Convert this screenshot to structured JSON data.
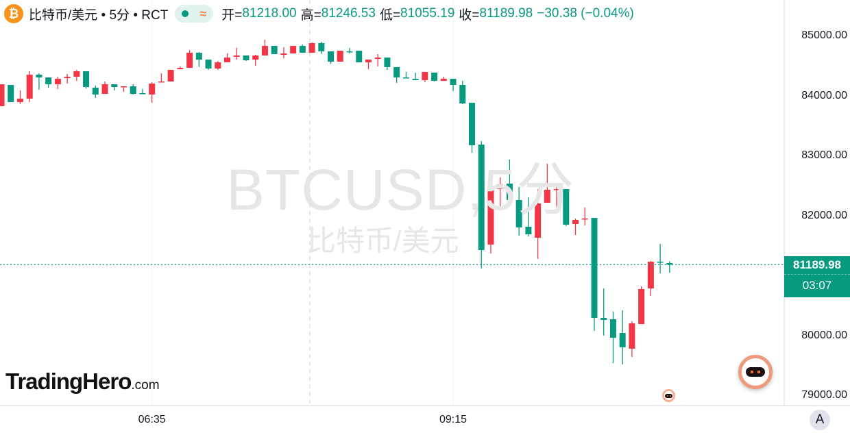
{
  "header": {
    "symbol_icon": "bitcoin-icon",
    "symbol_glyph": "₿",
    "title": "比特币/美元 • 5分 • RCT",
    "status_dot_color": "#089981",
    "approx_glyph": "≈",
    "open_label": "开=",
    "open": "81218.00",
    "high_label": "高=",
    "high": "81246.53",
    "low_label": "低=",
    "low": "81055.19",
    "close_label": "收=",
    "close": "81189.98",
    "change": "−30.38 (−0.04%)"
  },
  "watermark": {
    "line1": "BTCUSD,5分",
    "line2": "比特币/美元"
  },
  "logo": {
    "main": "TradingHero",
    "suffix": ".com"
  },
  "price_tag": {
    "price": "81189.98",
    "countdown": "03:07"
  },
  "auto_scale_label": "A",
  "colors": {
    "up": "#F23645",
    "down": "#089981",
    "last_price_line": "#089981"
  },
  "chart_data": {
    "type": "candlestick",
    "interval": "5分",
    "up_color": "#F23645",
    "down_color": "#089981",
    "ylim": [
      78850,
      85450
    ],
    "y_ticks": [
      "85000.00",
      "84000.00",
      "83000.00",
      "82000.00",
      "80000.00",
      "79000.00"
    ],
    "y_tick_values": [
      85000,
      84000,
      83000,
      82000,
      80000,
      79000
    ],
    "x_tick_labels": [
      {
        "label": "06:35",
        "index": 16
      },
      {
        "label": "09:15",
        "index": 48
      }
    ],
    "last_price": 81189.98,
    "ohlc": [
      [
        83834,
        84200,
        83834,
        84200
      ],
      [
        84189,
        84189,
        83903,
        83903
      ],
      [
        83903,
        84097,
        83869,
        83960
      ],
      [
        83960,
        84417,
        83903,
        84360
      ],
      [
        84360,
        84383,
        84109,
        84314
      ],
      [
        84314,
        84314,
        84143,
        84200
      ],
      [
        84200,
        84326,
        84120,
        84291
      ],
      [
        84303,
        84371,
        84211,
        84326
      ],
      [
        84326,
        84440,
        84257,
        84417
      ],
      [
        84417,
        84417,
        84131,
        84154
      ],
      [
        84143,
        84177,
        83971,
        84029
      ],
      [
        84040,
        84246,
        84040,
        84200
      ],
      [
        84200,
        84200,
        84097,
        84154
      ],
      [
        84154,
        84166,
        84074,
        84166
      ],
      [
        84166,
        84200,
        84029,
        84040
      ],
      [
        84051,
        84120,
        84040,
        84040
      ],
      [
        84029,
        84234,
        83891,
        84211
      ],
      [
        84234,
        84383,
        84234,
        84246
      ],
      [
        84246,
        84440,
        84246,
        84440
      ],
      [
        84451,
        84497,
        84451,
        84474
      ],
      [
        84474,
        84771,
        84474,
        84726
      ],
      [
        84726,
        84737,
        84486,
        84611
      ],
      [
        84611,
        84611,
        84440,
        84463
      ],
      [
        84463,
        84589,
        84440,
        84566
      ],
      [
        84566,
        84714,
        84566,
        84646
      ],
      [
        84657,
        84806,
        84611,
        84680
      ],
      [
        84680,
        84680,
        84589,
        84600
      ],
      [
        84611,
        84691,
        84509,
        84680
      ],
      [
        84680,
        84943,
        84680,
        84840
      ],
      [
        84840,
        84840,
        84703,
        84703
      ],
      [
        84691,
        84817,
        84634,
        84714
      ],
      [
        84714,
        84840,
        84714,
        84840
      ],
      [
        84840,
        84863,
        84726,
        84726
      ],
      [
        84726,
        84897,
        84726,
        84886
      ],
      [
        84886,
        84909,
        84703,
        84749
      ],
      [
        84749,
        84749,
        84543,
        84577
      ],
      [
        84577,
        84760,
        84577,
        84760
      ],
      [
        84749,
        84806,
        84714,
        84737
      ],
      [
        84760,
        84760,
        84566,
        84566
      ],
      [
        84566,
        84611,
        84451,
        84611
      ],
      [
        84623,
        84703,
        84497,
        84646
      ],
      [
        84646,
        84646,
        84440,
        84486
      ],
      [
        84486,
        84486,
        84223,
        84314
      ],
      [
        84314,
        84406,
        84303,
        84303
      ],
      [
        84291,
        84394,
        84269,
        84269
      ],
      [
        84269,
        84406,
        84234,
        84406
      ],
      [
        84394,
        84394,
        84246,
        84257
      ],
      [
        84257,
        84326,
        84257,
        84291
      ],
      [
        84291,
        84291,
        84086,
        84189
      ],
      [
        84189,
        84257,
        83869,
        83880
      ],
      [
        83891,
        83891,
        83057,
        83183
      ],
      [
        83194,
        83251,
        81126,
        81434
      ],
      [
        81526,
        82623,
        81377,
        82440
      ],
      [
        82451,
        82646,
        82154,
        82531
      ],
      [
        82543,
        82943,
        82246,
        82269
      ],
      [
        82269,
        82486,
        81674,
        81811
      ],
      [
        81823,
        82314,
        81663,
        81697
      ],
      [
        81640,
        82451,
        81286,
        82211
      ],
      [
        82223,
        82874,
        82223,
        82440
      ],
      [
        82440,
        82497,
        82120,
        82451
      ],
      [
        82451,
        82451,
        81834,
        81857
      ],
      [
        81869,
        81960,
        81686,
        81937
      ],
      [
        81949,
        82143,
        81846,
        81960
      ],
      [
        81971,
        81971,
        80086,
        80303
      ],
      [
        80303,
        80794,
        80006,
        80269
      ],
      [
        80280,
        80406,
        79549,
        79971
      ],
      [
        80051,
        80429,
        79526,
        79811
      ],
      [
        79789,
        80246,
        79651,
        80211
      ],
      [
        80200,
        80829,
        80200,
        80783
      ],
      [
        80794,
        81251,
        80669,
        81240
      ],
      [
        81240,
        81537,
        81046,
        81229
      ],
      [
        81218,
        81246.53,
        81055.19,
        81189.98
      ]
    ]
  }
}
